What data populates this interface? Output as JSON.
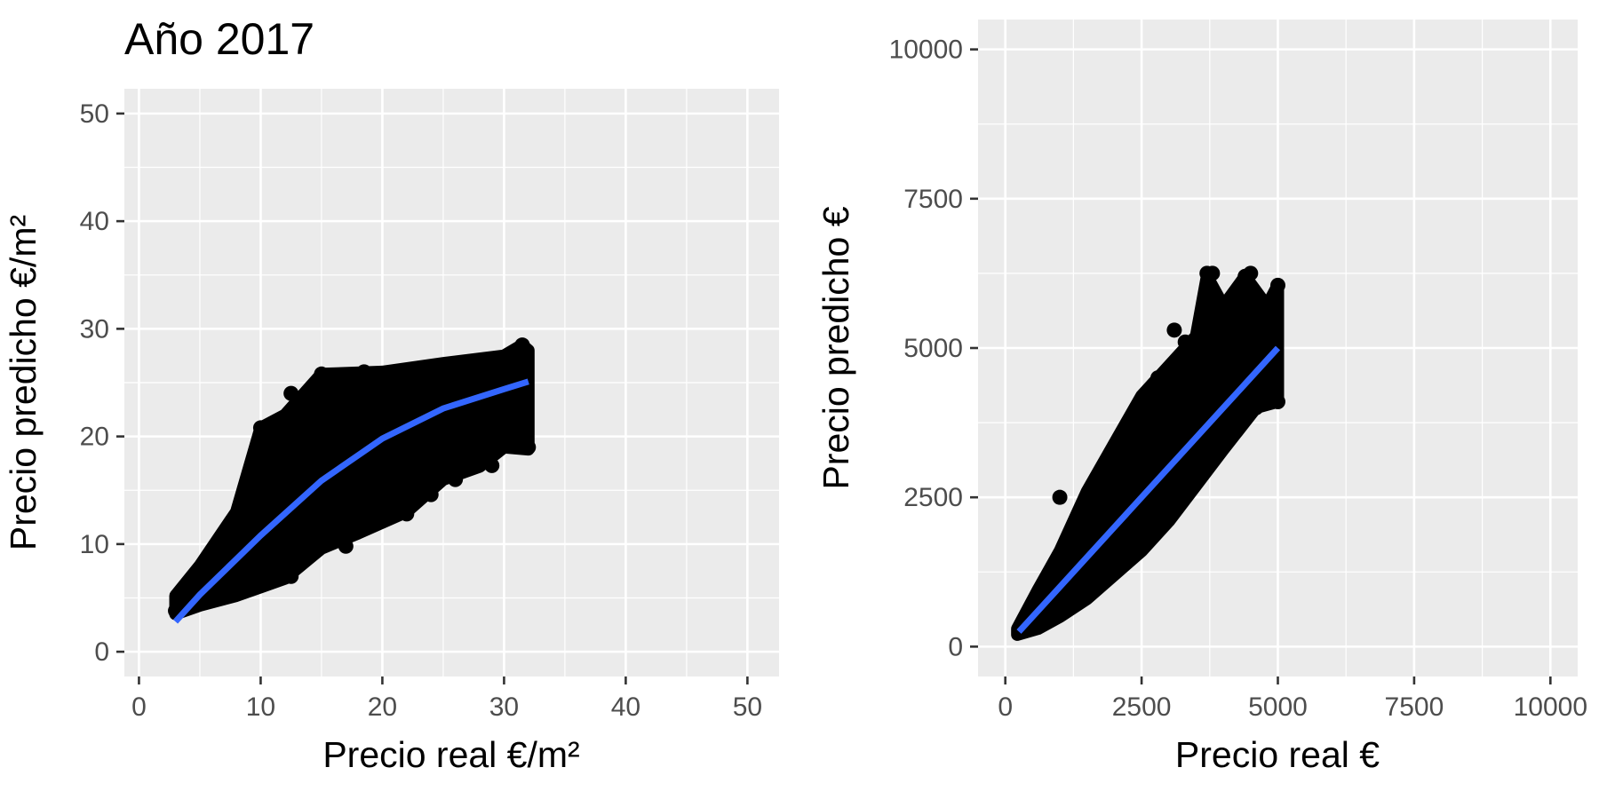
{
  "title": "Año 2017",
  "colors": {
    "panel": "#ebebeb",
    "grid": "#ffffff",
    "points": "#000000",
    "smooth_line": "#3366ff",
    "tick": "#333333",
    "tick_label": "#4d4d4d"
  },
  "chart_data": [
    {
      "type": "scatter",
      "title": "Año 2017",
      "xlabel": "Precio real  €/m²",
      "ylabel": "Precio predicho €/m²",
      "xlim": [
        -1.2,
        52.6
      ],
      "ylim": [
        -2.3,
        52.3
      ],
      "xticks": [
        0,
        10,
        20,
        30,
        40,
        50
      ],
      "yticks": [
        0,
        10,
        20,
        30,
        40,
        50
      ],
      "xtick_labels": [
        "0",
        "10",
        "20",
        "30",
        "40",
        "50"
      ],
      "ytick_labels": [
        "0",
        "10",
        "20",
        "30",
        "40",
        "50"
      ],
      "grid": true,
      "points_series": {
        "name": "",
        "cloud_upper": [
          [
            3,
            5.2
          ],
          [
            5,
            8
          ],
          [
            8,
            13
          ],
          [
            10,
            20.8
          ],
          [
            12,
            22
          ],
          [
            15,
            25.8
          ],
          [
            20,
            26
          ],
          [
            25,
            26.8
          ],
          [
            30,
            27.5
          ],
          [
            31.5,
            28.5
          ],
          [
            32,
            28
          ]
        ],
        "cloud_lower": [
          [
            32,
            18.8
          ],
          [
            30,
            19
          ],
          [
            28,
            17.2
          ],
          [
            25,
            16
          ],
          [
            22,
            13
          ],
          [
            18,
            11
          ],
          [
            15,
            9.6
          ],
          [
            12,
            6.8
          ],
          [
            10,
            6
          ],
          [
            8,
            5.2
          ],
          [
            5,
            4.3
          ],
          [
            3,
            3.5
          ]
        ],
        "points": [
          [
            10,
            20.8
          ],
          [
            12.5,
            24
          ],
          [
            15,
            25.8
          ],
          [
            18.5,
            26
          ],
          [
            31.5,
            28.5
          ],
          [
            32,
            19
          ],
          [
            29,
            17.3
          ],
          [
            26,
            16
          ],
          [
            24,
            14.6
          ],
          [
            22,
            12.8
          ],
          [
            17,
            9.8
          ],
          [
            12.5,
            7
          ],
          [
            9.5,
            6.2
          ],
          [
            6.5,
            5.4
          ],
          [
            4,
            4.4
          ],
          [
            3,
            3.8
          ],
          [
            3.5,
            5.1
          ],
          [
            20,
            23.5
          ],
          [
            27,
            21.5
          ],
          [
            14,
            14
          ]
        ]
      },
      "smooth_series": {
        "name": "",
        "x": [
          3,
          5,
          8,
          10,
          15,
          20,
          25,
          30,
          32
        ],
        "y": [
          2.8,
          5.3,
          8.6,
          10.8,
          15.9,
          19.8,
          22.6,
          24.4,
          25.1
        ]
      }
    },
    {
      "type": "scatter",
      "title": "",
      "xlabel": "Precio real  €",
      "ylabel": "Precio predicho €",
      "xlim": [
        -500,
        10500
      ],
      "ylim": [
        -500,
        10500
      ],
      "xticks": [
        0,
        2500,
        5000,
        7500,
        10000
      ],
      "yticks": [
        0,
        2500,
        5000,
        7500,
        10000
      ],
      "xtick_labels": [
        "0",
        "2500",
        "5000",
        "7500",
        "10000"
      ],
      "ytick_labels": [
        "0",
        "2500",
        "5000",
        "7500",
        "10000"
      ],
      "grid": true,
      "points_series": {
        "name": "",
        "cloud_upper": [
          [
            220,
            300
          ],
          [
            600,
            950
          ],
          [
            1000,
            1600
          ],
          [
            1500,
            2600
          ],
          [
            2000,
            3400
          ],
          [
            2500,
            4200
          ],
          [
            3000,
            4700
          ],
          [
            3500,
            5200
          ],
          [
            3700,
            6200
          ],
          [
            4000,
            5700
          ],
          [
            4400,
            6200
          ],
          [
            4800,
            5700
          ],
          [
            5000,
            6050
          ]
        ],
        "cloud_lower": [
          [
            5000,
            4100
          ],
          [
            4600,
            4000
          ],
          [
            4000,
            3300
          ],
          [
            3500,
            2700
          ],
          [
            3000,
            2100
          ],
          [
            2500,
            1600
          ],
          [
            2000,
            1200
          ],
          [
            1500,
            800
          ],
          [
            1000,
            500
          ],
          [
            600,
            300
          ],
          [
            220,
            200
          ]
        ],
        "points": [
          [
            3700,
            6250
          ],
          [
            3800,
            6250
          ],
          [
            4400,
            6200
          ],
          [
            4500,
            6250
          ],
          [
            5000,
            6050
          ],
          [
            2800,
            4500
          ],
          [
            3300,
            5100
          ],
          [
            3100,
            5300
          ],
          [
            1000,
            2500
          ],
          [
            2400,
            3600
          ],
          [
            4700,
            4700
          ],
          [
            5000,
            4100
          ],
          [
            4400,
            5600
          ],
          [
            2000,
            1300
          ],
          [
            1500,
            900
          ],
          [
            900,
            600
          ],
          [
            500,
            300
          ],
          [
            3500,
            2800
          ],
          [
            4000,
            3500
          ],
          [
            4600,
            4000
          ]
        ]
      },
      "smooth_series": {
        "name": "",
        "x": [
          250,
          1000,
          2000,
          3000,
          4000,
          5000
        ],
        "y": [
          250,
          1000,
          2000,
          3000,
          4000,
          5000
        ]
      }
    }
  ]
}
